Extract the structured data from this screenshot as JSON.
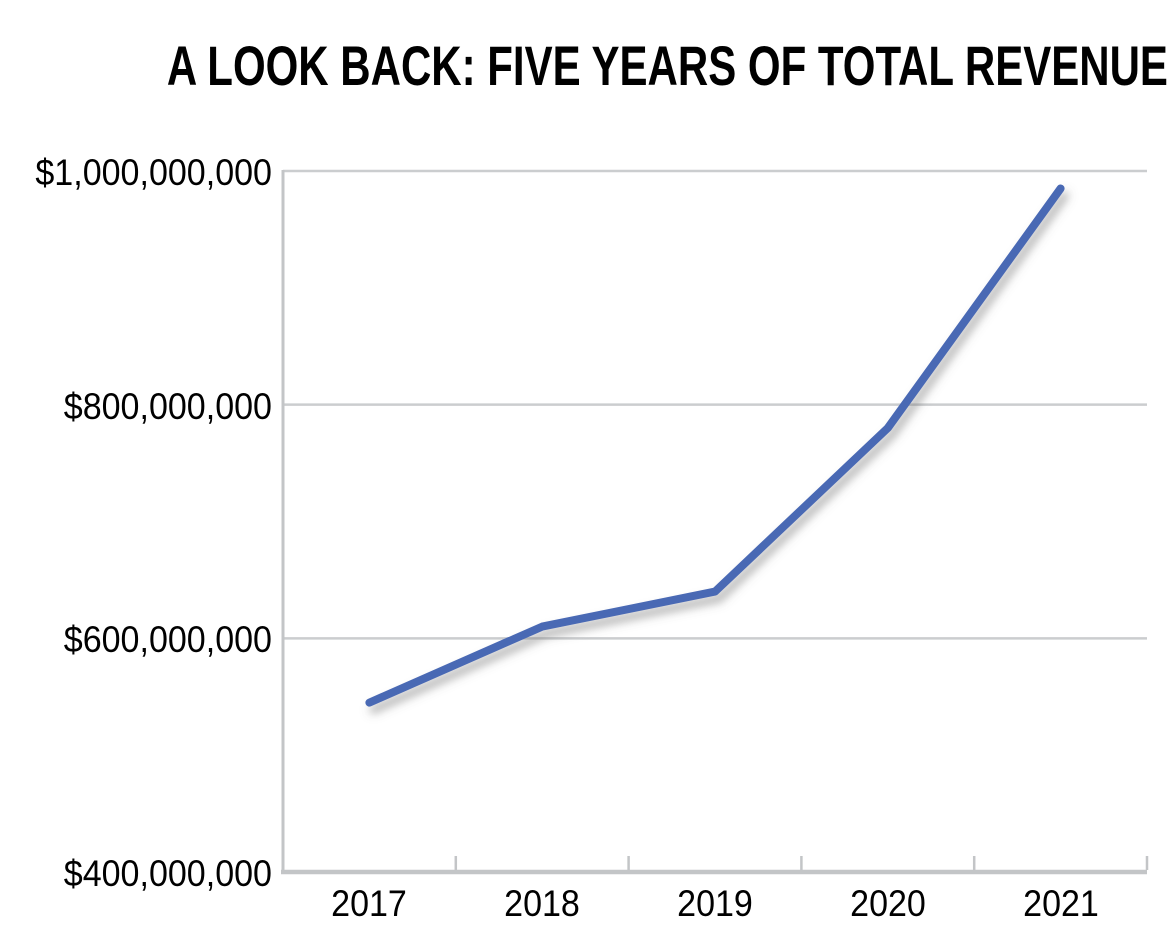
{
  "title": "A LOOK BACK: FIVE YEARS OF TOTAL REVENUE",
  "chart_data": {
    "type": "line",
    "title": "A LOOK BACK: FIVE YEARS OF TOTAL REVENUE",
    "categories": [
      "2017",
      "2018",
      "2019",
      "2020",
      "2021"
    ],
    "series": [
      {
        "name": "Total Revenue",
        "values": [
          545000000,
          610000000,
          640000000,
          780000000,
          985000000
        ]
      }
    ],
    "y_ticks": [
      {
        "value": 1000000000,
        "label": "$1,000,000,000"
      },
      {
        "value": 800000000,
        "label": "$800,000,000"
      },
      {
        "value": 600000000,
        "label": "$600,000,000"
      },
      {
        "value": 400000000,
        "label": "$400,000,000"
      }
    ],
    "ylim": [
      400000000,
      1000000000
    ],
    "xlabel": "",
    "ylabel": "",
    "grid": "horizontal",
    "legend": "none",
    "colors": {
      "line": "#4a69b4",
      "axis": "#c3c5c7",
      "grid": "#cbcdcf",
      "text": "#000000",
      "background": "#ffffff"
    }
  }
}
